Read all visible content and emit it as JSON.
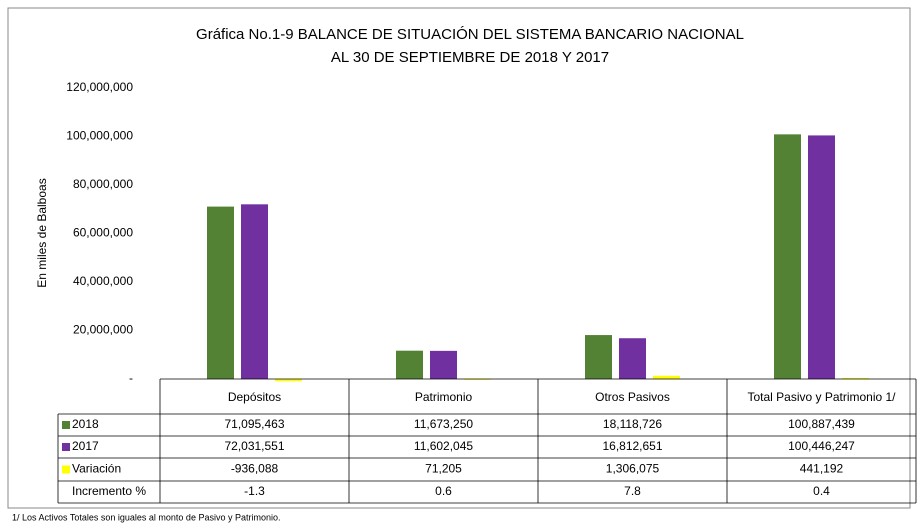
{
  "chart_data": {
    "type": "bar",
    "title": "Gráfica No.1-9  BALANCE DE SITUACIÓN DEL SISTEMA BANCARIO NACIONAL",
    "subtitle": "AL 30 DE SEPTIEMBRE DE 2018 Y 2017",
    "y_label": "En miles de Balboas",
    "categories": [
      "Depósitos",
      "Patrimonio",
      "Otros Pasivos",
      "Total Pasivo y Patrimonio 1/"
    ],
    "series": [
      {
        "name": "2018",
        "color": "#548235",
        "values": [
          71095463,
          11673250,
          18118726,
          100887439
        ],
        "value_labels": [
          "71,095,463",
          "11,673,250",
          "18,118,726",
          "100,887,439"
        ]
      },
      {
        "name": "2017",
        "color": "#7030a0",
        "values": [
          72031551,
          11602045,
          16812651,
          100446247
        ],
        "value_labels": [
          "72,031,551",
          "11,602,045",
          "16,812,651",
          "100,446,247"
        ]
      },
      {
        "name": "Variación",
        "color": "#ffff00",
        "values": [
          -936088,
          71205,
          1306075,
          441192
        ],
        "value_labels": [
          "-936,088",
          "71,205",
          "1,306,075",
          "441,192"
        ]
      }
    ],
    "increment": {
      "name": "Incremento %",
      "values": [
        -1.3,
        0.6,
        7.8,
        0.4
      ]
    },
    "ylim": [
      0,
      120000000
    ],
    "yticks": [
      {
        "value": 0,
        "label": "-"
      },
      {
        "value": 20000000,
        "label": "20,000,000"
      },
      {
        "value": 40000000,
        "label": "40,000,000"
      },
      {
        "value": 60000000,
        "label": "60,000,000"
      },
      {
        "value": 80000000,
        "label": "80,000,000"
      },
      {
        "value": 100000000,
        "label": "100,000,000"
      },
      {
        "value": 120000000,
        "label": "120,000,000"
      }
    ],
    "footnote": "1/  Los Activos Totales son iguales al monto de Pasivo y Patrimonio."
  }
}
